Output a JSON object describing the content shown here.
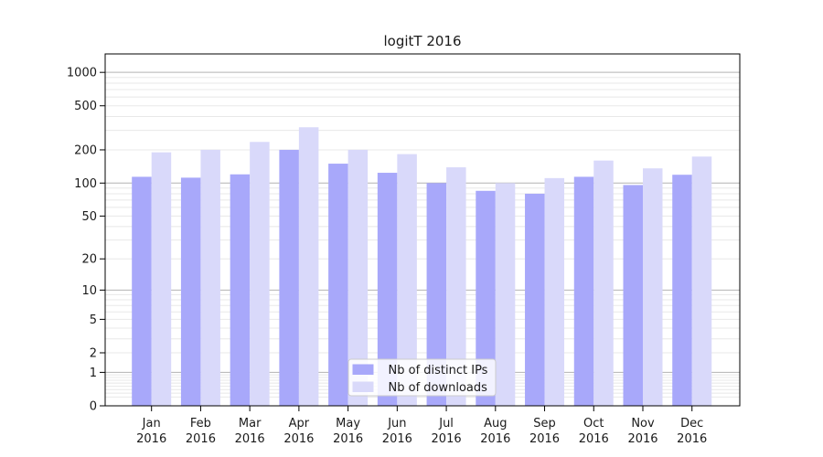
{
  "chart_data": {
    "type": "bar",
    "title": "logitT 2016",
    "categories": [
      "Jan 2016",
      "Feb 2016",
      "Mar 2016",
      "Apr 2016",
      "May 2016",
      "Jun 2016",
      "Jul 2016",
      "Aug 2016",
      "Sep 2016",
      "Oct 2016",
      "Nov 2016",
      "Dec 2016"
    ],
    "series": [
      {
        "name": "Nb of distinct IPs",
        "color": "#a8a8fa",
        "values": [
          114,
          112,
          120,
          200,
          150,
          124,
          100,
          85,
          80,
          114,
          96,
          119
        ]
      },
      {
        "name": "Nb of downloads",
        "color": "#d9d9fa",
        "values": [
          190,
          200,
          236,
          320,
          200,
          183,
          139,
          100,
          111,
          160,
          136,
          174
        ]
      }
    ],
    "y_scale": "log10(1+y)",
    "y_ticks": [
      0,
      1,
      2,
      5,
      10,
      20,
      50,
      100,
      200,
      500,
      1000
    ],
    "ylim": [
      0,
      1466
    ],
    "xlabel": "",
    "ylabel": "",
    "grid": true,
    "legend_position": "lower center"
  },
  "colors": {
    "grid_major": "#b3b3b3",
    "grid_minor": "#e8e8e8",
    "spine": "#000000",
    "text": "#1a1a1a",
    "legend_bg": "rgba(255,255,255,0.85)",
    "legend_border": "#cccccc"
  }
}
